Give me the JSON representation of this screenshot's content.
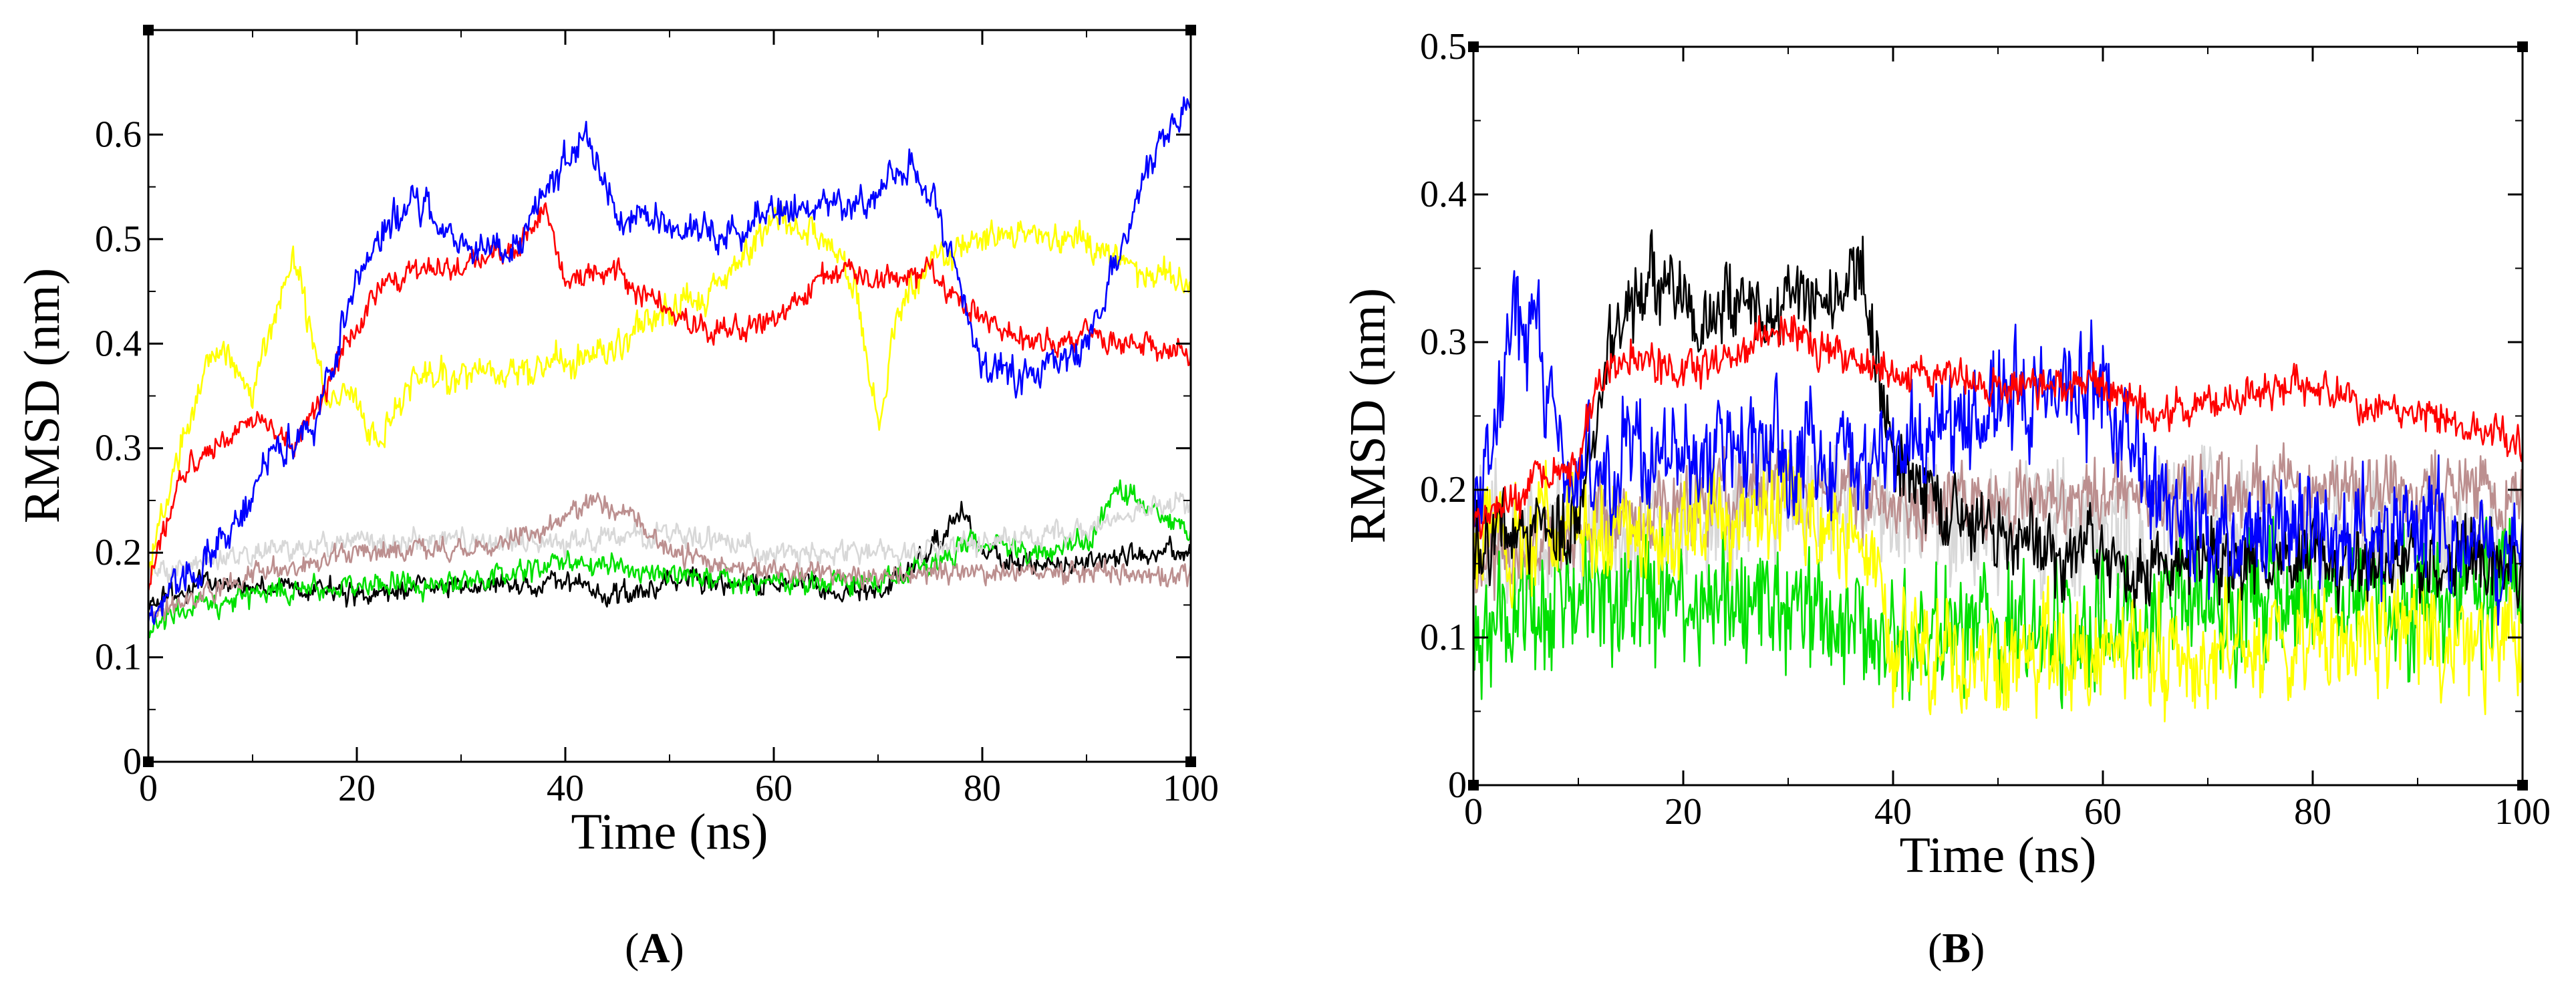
{
  "chart_data": [
    {
      "type": "line",
      "panel_label": "A",
      "xlabel": "Time (ns)",
      "ylabel": "RMSD (nm)",
      "xlim": [
        0,
        100
      ],
      "ylim": [
        0,
        0.7
      ],
      "xticks": [
        0,
        20,
        40,
        60,
        80,
        100
      ],
      "xtick_labels": [
        "0",
        "20",
        "40",
        "60",
        "80",
        "100"
      ],
      "yticks": [
        0,
        0.1,
        0.2,
        0.3,
        0.4,
        0.5,
        0.6
      ],
      "ytick_labels": [
        "0",
        "0.1",
        "0.2",
        "0.3",
        "0.4",
        "0.5",
        "0.6"
      ],
      "noise_scale": 0.2,
      "series": [
        {
          "name": "black",
          "color": "#000000",
          "noise": 0.012,
          "x": [
            0,
            5,
            10,
            20,
            30,
            40,
            45,
            50,
            60,
            70,
            75,
            78,
            80,
            85,
            90,
            95,
            100
          ],
          "y": [
            0.15,
            0.17,
            0.17,
            0.16,
            0.17,
            0.17,
            0.16,
            0.17,
            0.17,
            0.16,
            0.2,
            0.24,
            0.2,
            0.19,
            0.19,
            0.2,
            0.2
          ]
        },
        {
          "name": "green",
          "color": "#00e000",
          "noise": 0.013,
          "x": [
            0,
            5,
            10,
            20,
            30,
            40,
            50,
            60,
            65,
            70,
            75,
            80,
            85,
            90,
            93,
            96,
            100
          ],
          "y": [
            0.13,
            0.15,
            0.16,
            0.17,
            0.17,
            0.19,
            0.18,
            0.17,
            0.17,
            0.17,
            0.19,
            0.21,
            0.2,
            0.21,
            0.26,
            0.24,
            0.22
          ]
        },
        {
          "name": "light gray",
          "color": "#d8d8d8",
          "noise": 0.013,
          "x": [
            0,
            5,
            10,
            20,
            30,
            40,
            50,
            60,
            70,
            80,
            90,
            95,
            100
          ],
          "y": [
            0.18,
            0.19,
            0.2,
            0.21,
            0.21,
            0.21,
            0.22,
            0.2,
            0.2,
            0.21,
            0.22,
            0.24,
            0.25
          ]
        },
        {
          "name": "rosy brown",
          "color": "#bc8f8f",
          "noise": 0.012,
          "x": [
            0,
            5,
            10,
            20,
            30,
            38,
            42,
            46,
            50,
            55,
            60,
            70,
            80,
            90,
            100
          ],
          "y": [
            0.14,
            0.16,
            0.18,
            0.2,
            0.2,
            0.22,
            0.25,
            0.24,
            0.2,
            0.19,
            0.18,
            0.18,
            0.18,
            0.18,
            0.18
          ]
        },
        {
          "name": "yellow",
          "color": "#ffff00",
          "noise": 0.018,
          "x": [
            0,
            3,
            6,
            10,
            14,
            17,
            20,
            22,
            25,
            30,
            40,
            45,
            50,
            55,
            60,
            65,
            68,
            70,
            72,
            75,
            80,
            90,
            95,
            100
          ],
          "y": [
            0.18,
            0.3,
            0.4,
            0.36,
            0.48,
            0.35,
            0.34,
            0.3,
            0.37,
            0.37,
            0.38,
            0.4,
            0.43,
            0.46,
            0.52,
            0.5,
            0.45,
            0.32,
            0.43,
            0.48,
            0.5,
            0.5,
            0.47,
            0.45
          ]
        },
        {
          "name": "red",
          "color": "#ff0000",
          "noise": 0.014,
          "x": [
            0,
            3,
            6,
            10,
            14,
            18,
            22,
            25,
            30,
            35,
            38,
            40,
            45,
            50,
            55,
            60,
            65,
            70,
            75,
            80,
            85,
            90,
            95,
            100
          ],
          "y": [
            0.17,
            0.27,
            0.3,
            0.33,
            0.3,
            0.38,
            0.45,
            0.47,
            0.47,
            0.49,
            0.53,
            0.46,
            0.47,
            0.43,
            0.41,
            0.42,
            0.47,
            0.46,
            0.47,
            0.42,
            0.4,
            0.41,
            0.4,
            0.39
          ]
        },
        {
          "name": "blue",
          "color": "#0000ff",
          "noise": 0.02,
          "x": [
            0,
            4,
            8,
            12,
            16,
            20,
            25,
            30,
            35,
            40,
            42,
            45,
            50,
            55,
            60,
            65,
            70,
            73,
            75,
            78,
            80,
            85,
            90,
            93,
            96,
            100
          ],
          "y": [
            0.14,
            0.18,
            0.22,
            0.3,
            0.32,
            0.47,
            0.54,
            0.5,
            0.49,
            0.57,
            0.6,
            0.52,
            0.52,
            0.5,
            0.52,
            0.53,
            0.54,
            0.57,
            0.55,
            0.45,
            0.38,
            0.37,
            0.4,
            0.48,
            0.57,
            0.63
          ]
        }
      ]
    },
    {
      "type": "line",
      "panel_label": "B",
      "xlabel": "Time (ns)",
      "ylabel": "RMSD (nm)",
      "xlim": [
        0,
        100
      ],
      "ylim": [
        0,
        0.5
      ],
      "xticks": [
        0,
        20,
        40,
        60,
        80,
        100
      ],
      "xtick_labels": [
        "0",
        "20",
        "40",
        "60",
        "80",
        "100"
      ],
      "yticks": [
        0,
        0.1,
        0.2,
        0.3,
        0.4,
        0.5
      ],
      "ytick_labels": [
        "0",
        "0.1",
        "0.2",
        "0.3",
        "0.4",
        "0.5"
      ],
      "noise_scale": 0.32,
      "series": [
        {
          "name": "light gray",
          "color": "#d8d8d8",
          "noise": 0.04,
          "x": [
            0,
            10,
            20,
            30,
            40,
            50,
            60,
            70,
            80,
            90,
            100
          ],
          "y": [
            0.17,
            0.17,
            0.18,
            0.19,
            0.19,
            0.17,
            0.17,
            0.18,
            0.17,
            0.16,
            0.15
          ]
        },
        {
          "name": "rosy brown",
          "color": "#bc8f8f",
          "noise": 0.025,
          "x": [
            0,
            5,
            10,
            20,
            30,
            40,
            50,
            60,
            70,
            80,
            90,
            100
          ],
          "y": [
            0.16,
            0.15,
            0.17,
            0.19,
            0.2,
            0.19,
            0.19,
            0.2,
            0.2,
            0.2,
            0.2,
            0.2
          ]
        },
        {
          "name": "green",
          "color": "#00e000",
          "noise": 0.04,
          "x": [
            0,
            5,
            10,
            20,
            30,
            40,
            50,
            60,
            70,
            80,
            90,
            100
          ],
          "y": [
            0.1,
            0.11,
            0.12,
            0.13,
            0.12,
            0.1,
            0.11,
            0.12,
            0.12,
            0.13,
            0.13,
            0.13
          ]
        },
        {
          "name": "yellow",
          "color": "#ffff00",
          "noise": 0.035,
          "x": [
            0,
            5,
            10,
            20,
            30,
            38,
            40,
            50,
            60,
            70,
            80,
            90,
            100
          ],
          "y": [
            0.17,
            0.16,
            0.17,
            0.18,
            0.19,
            0.16,
            0.09,
            0.09,
            0.09,
            0.09,
            0.1,
            0.1,
            0.09
          ]
        },
        {
          "name": "black",
          "color": "#000000",
          "noise": 0.025,
          "x": [
            0,
            10,
            13,
            17,
            22,
            25,
            28,
            30,
            35,
            37,
            40,
            50,
            60
          ],
          "y": [
            0.16,
            0.18,
            0.3,
            0.35,
            0.31,
            0.33,
            0.31,
            0.33,
            0.34,
            0.35,
            0.21,
            0.17,
            0.15
          ]
        },
        {
          "name": "blue",
          "color": "#0000ff",
          "noise": 0.035,
          "x": [
            0,
            2,
            4,
            6,
            8,
            10,
            15,
            20,
            30,
            40,
            45,
            50,
            55,
            60,
            65,
            70,
            80,
            90,
            100
          ],
          "y": [
            0.18,
            0.25,
            0.33,
            0.3,
            0.24,
            0.2,
            0.22,
            0.23,
            0.22,
            0.22,
            0.24,
            0.26,
            0.27,
            0.27,
            0.2,
            0.18,
            0.17,
            0.17,
            0.16
          ]
        },
        {
          "name": "red",
          "color": "#ff0000",
          "noise": 0.012,
          "x": [
            0,
            5,
            10,
            12,
            15,
            20,
            25,
            30,
            35,
            40,
            50,
            60,
            65,
            70,
            80,
            85,
            90,
            95,
            100
          ],
          "y": [
            0.18,
            0.2,
            0.22,
            0.28,
            0.29,
            0.28,
            0.29,
            0.31,
            0.29,
            0.28,
            0.27,
            0.27,
            0.25,
            0.26,
            0.27,
            0.26,
            0.25,
            0.24,
            0.23
          ]
        }
      ]
    }
  ]
}
